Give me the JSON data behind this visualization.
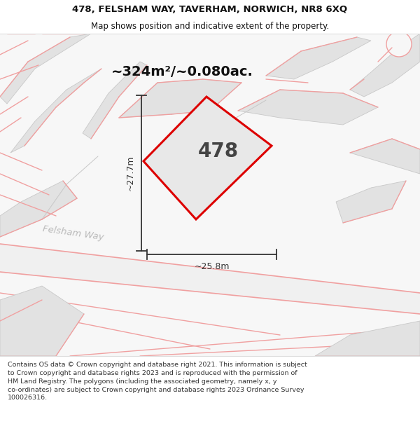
{
  "title_line1": "478, FELSHAM WAY, TAVERHAM, NORWICH, NR8 6XQ",
  "title_line2": "Map shows position and indicative extent of the property.",
  "area_label": "~324m²/~0.080ac.",
  "plot_number": "478",
  "dim_width": "~25.8m",
  "dim_height": "~27.7m",
  "road_label": "Felsham Way",
  "footer_text": "Contains OS data © Crown copyright and database right 2021. This information is subject to Crown copyright and database rights 2023 and is reproduced with the permission of HM Land Registry. The polygons (including the associated geometry, namely x, y co-ordinates) are subject to Crown copyright and database rights 2023 Ordnance Survey 100026316.",
  "title_fontsize": 9.5,
  "subtitle_fontsize": 8.5,
  "area_fontsize": 14,
  "plot_num_fontsize": 20,
  "dim_fontsize": 9,
  "road_fontsize": 9.5,
  "footer_fontsize": 6.8,
  "bg_color": "#f5f5f5",
  "plot_fill": "#e8e8e8",
  "plot_edge_color": "#dd0000",
  "neighbor_fill": "#e2e2e2",
  "neighbor_edge": "#c8c8c8",
  "pink_line_color": "#f0a0a0",
  "dim_color": "#333333",
  "road_color": "#bbbbbb",
  "plot_num_color": "#444444",
  "area_color": "#111111",
  "footer_bg": "#ffffff",
  "map_bg": "#f7f7f7",
  "title_bg": "#ffffff"
}
